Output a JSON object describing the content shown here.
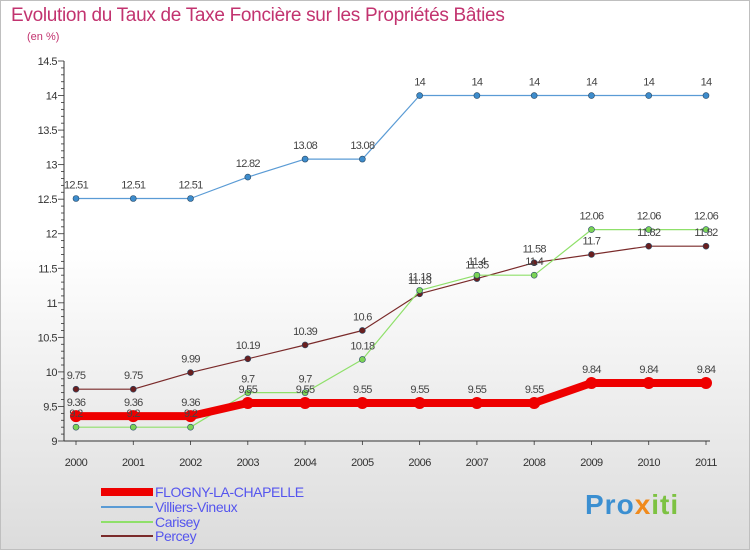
{
  "title": "Evolution du Taux de Taxe Foncière sur les Propriétés Bâties",
  "subtitle": "(en %)",
  "logo": {
    "part1": "Pro",
    "part2": "x",
    "part3": "iti"
  },
  "chart_data": {
    "type": "line",
    "x": [
      "2000",
      "2001",
      "2002",
      "2003",
      "2004",
      "2005",
      "2006",
      "2007",
      "2008",
      "2009",
      "2010",
      "2011"
    ],
    "ylim": [
      9,
      14.5
    ],
    "yticks": [
      "9",
      "9.5",
      "10",
      "10.5",
      "11",
      "11.5",
      "12",
      "12.5",
      "13",
      "13.5",
      "14",
      "14.5"
    ],
    "grid": false,
    "legend_position": "bottom-left",
    "series": [
      {
        "name": "Villiers-Vineux",
        "color": "#5a9bd5",
        "marker": "#3d8ccc",
        "width": 1.2,
        "labels": true,
        "values": [
          12.51,
          12.51,
          12.51,
          12.82,
          13.08,
          13.08,
          14,
          14,
          14,
          14,
          14,
          14
        ],
        "value_labels": [
          "12.51",
          "12.51",
          "12.51",
          "12.82",
          "13.08",
          "13.08",
          "14",
          "14",
          "14",
          "14",
          "14",
          "14"
        ]
      },
      {
        "name": "Percey",
        "color": "#7a2a2a",
        "marker": "#6a1f1f",
        "width": 1.2,
        "labels": true,
        "values": [
          9.75,
          9.75,
          9.99,
          10.19,
          10.39,
          10.6,
          11.13,
          11.35,
          11.58,
          11.7,
          11.82,
          11.82
        ],
        "value_labels": [
          "9.75",
          "9.75",
          "9.99",
          "10.19",
          "10.39",
          "10.6",
          "11.13",
          "11.35",
          "11.58",
          "11.7",
          "11.82",
          "11.82"
        ]
      },
      {
        "name": "Carisey",
        "color": "#8fe06a",
        "marker": "#7bd455",
        "width": 1.2,
        "labels": true,
        "values": [
          9.2,
          9.2,
          9.2,
          9.7,
          9.7,
          10.18,
          11.18,
          11.4,
          11.4,
          12.06,
          12.06,
          12.06
        ],
        "value_labels": [
          "9.2",
          "9.2",
          "9.2",
          "9.7",
          "9.7",
          "10.18",
          "11.18",
          "11.4",
          "11.4",
          "12.06",
          "12.06",
          "12.06"
        ]
      },
      {
        "name": "FLOGNY-LA-CHAPELLE",
        "color": "#ee0000",
        "marker": "#ee0000",
        "width": 8,
        "labels": true,
        "values": [
          9.36,
          9.36,
          9.36,
          9.55,
          9.55,
          9.55,
          9.55,
          9.55,
          9.55,
          9.84,
          9.84,
          9.84
        ],
        "value_labels": [
          "9.36",
          "9.36",
          "9.36",
          "9.55",
          "9.55",
          "9.55",
          "9.55",
          "9.55",
          "9.55",
          "9.84",
          "9.84",
          "9.84"
        ]
      }
    ],
    "legend": [
      {
        "name": "FLOGNY-LA-CHAPELLE",
        "color": "#ee0000",
        "text_color": "#5555ee"
      },
      {
        "name": "Villiers-Vineux",
        "color": "#5a9bd5",
        "text_color": "#5555ee"
      },
      {
        "name": "Carisey",
        "color": "#8fe06a",
        "text_color": "#5555ee"
      },
      {
        "name": "Percey",
        "color": "#7a2a2a",
        "text_color": "#5555ee"
      }
    ]
  }
}
